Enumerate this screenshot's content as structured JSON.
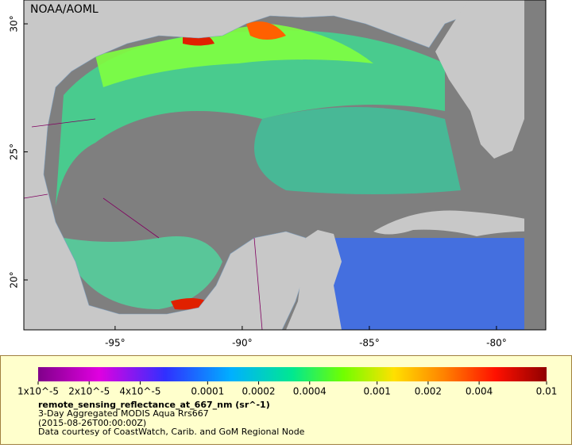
{
  "header": {
    "watermark": "NOAA/AOML"
  },
  "map": {
    "xlim": [
      -98.59,
      -78.06
    ],
    "ylim": [
      18.05,
      30.93
    ],
    "xticks": [
      {
        "value": -95,
        "label": "-95°"
      },
      {
        "value": -90,
        "label": "-90°"
      },
      {
        "value": -85,
        "label": "-85°"
      },
      {
        "value": -80,
        "label": "-80°"
      }
    ],
    "yticks": [
      {
        "value": 20,
        "label": "20°"
      },
      {
        "value": 25,
        "label": "25°"
      },
      {
        "value": 30,
        "label": "30°"
      }
    ]
  },
  "colorbar": {
    "scale": "log",
    "lim": [
      1e-05,
      0.01
    ],
    "ticks": [
      {
        "value": 1e-05,
        "label": "1x10^-5"
      },
      {
        "value": 2e-05,
        "label": "2x10^-5"
      },
      {
        "value": 4e-05,
        "label": "4x10^-5"
      },
      0.0001,
      0.0002,
      0.0004,
      0.001,
      0.002,
      0.004,
      0.01
    ]
  },
  "legend": {
    "variable": "remote_sensing_reflectance_at_667_nm (sr^-1)",
    "lines": [
      "3-Day Aggregated MODIS Aqua Rrs667",
      "(2015-08-26T00:00:00Z)",
      "Data courtesy of CoastWatch, Carib. and GoM Regional Node"
    ]
  }
}
